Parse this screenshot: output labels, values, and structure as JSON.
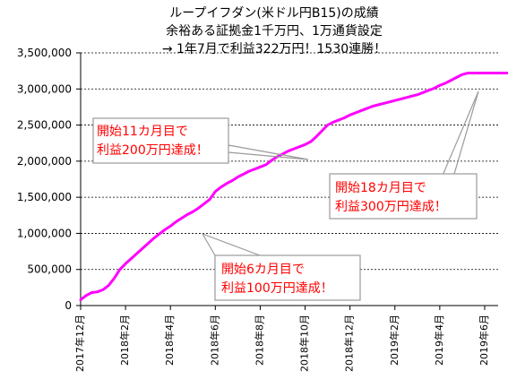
{
  "chart_data": {
    "type": "line",
    "title_lines": [
      "ループイフダン(米ドル円B15)の成績",
      "余裕ある証拠金1千万円、1万通貨設定",
      "→ 1年7月で利益322万円！1530連勝！"
    ],
    "xlabel": "",
    "ylabel": "",
    "ylim": [
      0,
      3500000
    ],
    "yticks": [
      "0",
      "500,000",
      "1,000,000",
      "1,500,000",
      "2,000,000",
      "2,500,000",
      "3,000,000",
      "3,500,000"
    ],
    "xticks": [
      "2017年12月",
      "2018年2月",
      "2018年4月",
      "2018年6月",
      "2018年8月",
      "2018年10月",
      "2018年12月",
      "2019年2月",
      "2019年4月",
      "2019年6月"
    ],
    "grid": "horizontal dashed",
    "line_color": "#ff00ff",
    "text_color_callouts": "#ff0000",
    "series": [
      {
        "x": [
          0,
          0.25,
          0.5,
          0.75,
          1,
          1.25,
          1.5,
          1.75,
          2,
          2.25,
          2.5,
          2.75,
          3,
          3.25,
          3.5,
          3.75,
          4,
          4.25,
          4.5,
          4.75,
          5,
          5.25,
          5.5,
          5.75,
          6,
          6.25,
          6.5,
          6.75,
          7,
          7.25,
          7.5,
          7.75,
          8,
          8.25,
          8.5,
          8.75,
          9,
          9.25,
          9.5,
          9.75,
          10,
          10.25,
          10.5,
          10.75,
          11,
          11.25,
          11.5,
          11.75,
          12,
          12.25,
          12.5,
          12.75,
          13,
          13.25,
          13.5,
          13.75,
          14,
          14.25,
          14.5,
          14.75,
          15,
          15.25,
          15.5,
          15.75,
          16,
          16.25,
          16.5,
          16.75,
          17,
          17.25,
          17.5,
          17.75,
          18,
          18.25,
          18.5,
          18.75,
          19
        ],
        "values": [
          80000,
          140000,
          180000,
          190000,
          220000,
          280000,
          380000,
          500000,
          580000,
          650000,
          720000,
          790000,
          860000,
          930000,
          990000,
          1050000,
          1100000,
          1160000,
          1210000,
          1260000,
          1300000,
          1350000,
          1410000,
          1470000,
          1580000,
          1640000,
          1690000,
          1730000,
          1780000,
          1820000,
          1860000,
          1890000,
          1920000,
          1950000,
          2010000,
          2060000,
          2100000,
          2140000,
          2170000,
          2200000,
          2230000,
          2270000,
          2340000,
          2420000,
          2500000,
          2540000,
          2570000,
          2600000,
          2640000,
          2670000,
          2700000,
          2730000,
          2760000,
          2780000,
          2800000,
          2820000,
          2840000,
          2860000,
          2880000,
          2900000,
          2920000,
          2950000,
          2980000,
          3010000,
          3050000,
          3080000,
          3120000,
          3160000,
          3200000,
          3220000,
          3220000,
          3220000,
          3220000,
          3220000,
          3220000,
          3220000,
          3220000
        ]
      }
    ],
    "annotations": [
      {
        "line1": "開始11カ月目で",
        "line2": "利益200万円達成！"
      },
      {
        "line1": "開始18カ月目で",
        "line2": "利益300万円達成！"
      },
      {
        "line1": "開始6カ月目で",
        "line2": "利益100万円達成！"
      }
    ]
  }
}
